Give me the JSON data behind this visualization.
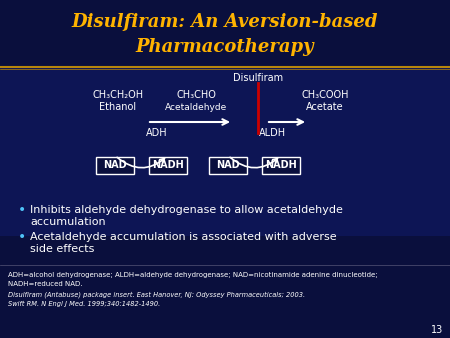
{
  "title_line1": "Disulfiram: An Aversion-based",
  "title_line2": "Pharmacotherapy",
  "title_color": "#FFB300",
  "bg_color": "#0A0F3D",
  "separator_color": "#B8860B",
  "text_color": "#FFFFFF",
  "disulfiram_color": "#CC0000",
  "disulfiram_label": "Disulfiram",
  "ethanol_l1": "CH₃CH₂OH",
  "ethanol_l2": "Ethanol",
  "acetal_l1": "CH₃CHO",
  "acetal_l2": "Acetaldehyde",
  "acetate_l1": "CH₃COOH",
  "acetate_l2": "Acetate",
  "enzyme1": "ADH",
  "enzyme2": "ALDH",
  "boxes": [
    "NAD",
    "NADH",
    "NAD",
    "NADH"
  ],
  "bullet1a": "Inhibits aldehyde dehydrogenase to allow acetaldehyde",
  "bullet1b": "accumulation",
  "bullet2a": "Acetaldehyde accumulation is associated with adverse",
  "bullet2b": "side effects",
  "footnote1": "ADH=alcohol dehydrogenase; ALDH=aldehyde dehydrogenase; NAD=nicotinamide adenine dinucleotide;",
  "footnote2": "NADH=reduced NAD.",
  "footnote3": "Disulfiram (Antabuse) package insert. East Hanover, NJ: Odyssey Pharmaceuticals; 2003.",
  "footnote4": "Swift RM. N Engl J Med. 1999;340:1482-1490.",
  "page_num": "13",
  "bullet_color": "#4FC3F7",
  "diagram_border_color": "#B8860B"
}
